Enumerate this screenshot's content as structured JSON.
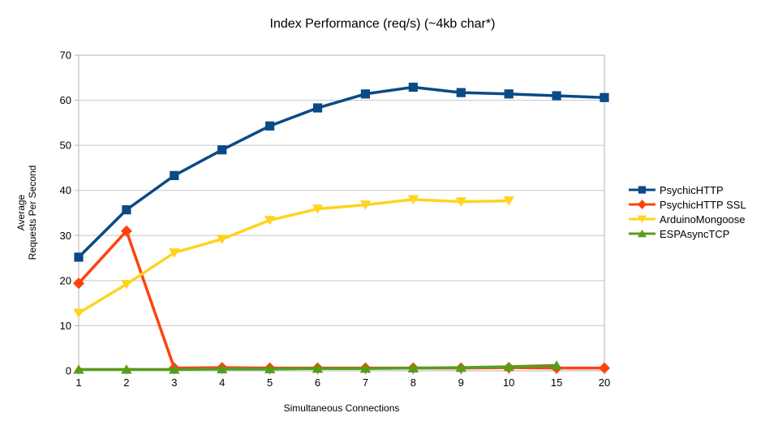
{
  "chart_data": {
    "type": "line",
    "title": "Index Performance (req/s) (~4kb char*)",
    "xlabel": "Simultaneous Connections",
    "ylabel": "Average\nRequests Per Second",
    "x_categories": [
      "1",
      "2",
      "3",
      "4",
      "5",
      "6",
      "7",
      "8",
      "9",
      "10",
      "15",
      "20"
    ],
    "ylim": [
      0,
      70
    ],
    "y_ticks": [
      0,
      10,
      20,
      30,
      40,
      50,
      60,
      70
    ],
    "grid": "horizontal-major",
    "legend_position": "right",
    "axis_color": "#b3b3b3",
    "gridline_color": "#c8c8c8",
    "series": [
      {
        "name": "PsychicHTTP",
        "color": "#0a4a86",
        "marker": "square",
        "values": [
          25.2,
          35.7,
          43.3,
          49.0,
          54.3,
          58.3,
          61.4,
          62.9,
          61.7,
          61.4,
          61.0,
          60.6
        ]
      },
      {
        "name": "PsychicHTTP SSL",
        "color": "#ff420e",
        "marker": "diamond",
        "values": [
          19.4,
          31.0,
          0.6,
          0.7,
          0.6,
          0.6,
          0.6,
          0.6,
          0.6,
          0.7,
          0.6,
          0.6
        ]
      },
      {
        "name": "ArduinoMongoose",
        "color": "#ffd320",
        "marker": "triangle-down",
        "values": [
          12.8,
          19.2,
          26.2,
          29.2,
          33.4,
          35.9,
          36.8,
          38.0,
          37.5,
          37.7,
          null,
          null
        ]
      },
      {
        "name": "ESPAsyncTCP",
        "color": "#579d1c",
        "marker": "triangle-up",
        "values": [
          0.3,
          0.3,
          0.3,
          0.4,
          0.4,
          0.5,
          0.5,
          0.6,
          0.7,
          0.9,
          1.2,
          null
        ]
      }
    ]
  }
}
